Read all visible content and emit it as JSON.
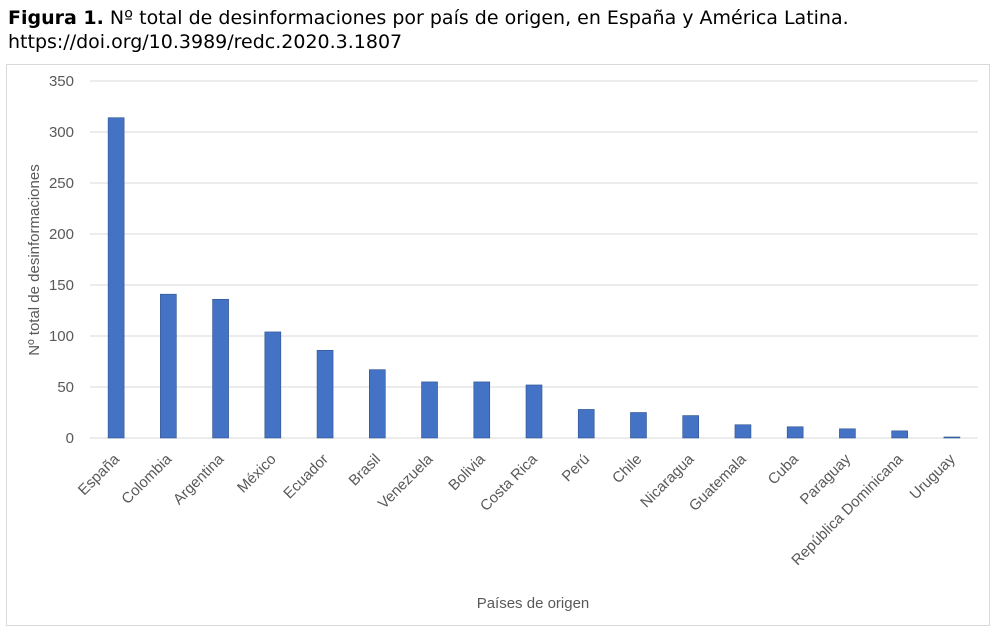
{
  "caption": {
    "label": "Figura 1.",
    "text": "Nº total de desinformaciones por país de origen, en España y América Latina.",
    "doi": "https://doi.org/10.3989/redc.2020.3.1807"
  },
  "colors": {
    "bar": "#4472c4",
    "grid": "#d9d9d9",
    "text": "#595959"
  },
  "chart_data": {
    "type": "bar",
    "categories": [
      "España",
      "Colombia",
      "Argentina",
      "México",
      "Ecuador",
      "Brasil",
      "Venezuela",
      "Bolivia",
      "Costa Rica",
      "Perú",
      "Chile",
      "Nicaragua",
      "Guatemala",
      "Cuba",
      "Paraguay",
      "República Dominicana",
      "Uruguay"
    ],
    "values": [
      314,
      141,
      136,
      104,
      86,
      67,
      55,
      55,
      52,
      28,
      25,
      22,
      13,
      11,
      9,
      7,
      1
    ],
    "xlabel": "Países de origen",
    "ylabel": "Nº total de desinformaciones",
    "ylim": [
      0,
      350
    ],
    "yticks": [
      0,
      50,
      100,
      150,
      200,
      250,
      300,
      350
    ],
    "grid": true,
    "legend": "none"
  }
}
